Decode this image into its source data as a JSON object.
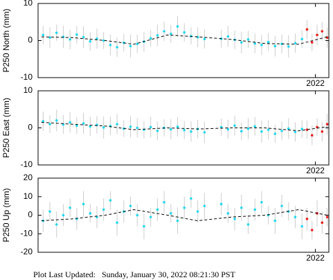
{
  "chart_data": [
    {
      "type": "scatter",
      "ylabel": "P250 North (mm)",
      "xlim": [
        2020.35,
        2022.08
      ],
      "xticks": [
        2022
      ],
      "ylim": [
        -10,
        10
      ],
      "yticks": [
        -10,
        0,
        10
      ],
      "series": [
        {
          "color": "#22d8ee",
          "x": [
            2020.38,
            2020.42,
            2020.46,
            2020.5,
            2020.54,
            2020.58,
            2020.62,
            2020.66,
            2020.7,
            2020.74,
            2020.78,
            2020.82,
            2020.86,
            2020.9,
            2020.94,
            2020.98,
            2021.02,
            2021.06,
            2021.1,
            2021.14,
            2021.18,
            2021.22,
            2021.26,
            2021.3,
            2021.34,
            2021.44,
            2021.48,
            2021.52,
            2021.56,
            2021.6,
            2021.64,
            2021.68,
            2021.72,
            2021.76,
            2021.8,
            2021.84,
            2021.88,
            2021.92
          ],
          "values": [
            1.5,
            0.8,
            2.1,
            1.0,
            0.3,
            1.6,
            0.9,
            -0.2,
            0.5,
            0.0,
            -1.2,
            -1.8,
            -0.6,
            -1.5,
            -0.9,
            -0.3,
            0.6,
            1.4,
            2.5,
            1.8,
            3.8,
            2.2,
            1.2,
            0.9,
            0.4,
            0.5,
            1.1,
            0.2,
            -0.5,
            0.3,
            -0.8,
            -1.2,
            -0.4,
            -1.5,
            -0.9,
            -1.6,
            -0.7,
            0.4
          ],
          "errors": [
            2.5,
            2.8,
            2.2,
            3.0,
            2.6,
            2.4,
            2.9,
            2.5,
            2.7,
            2.3,
            2.8,
            2.6,
            2.4,
            3.1,
            2.5,
            2.7,
            2.2,
            2.9,
            2.6,
            2.4,
            2.8,
            2.5,
            2.3,
            2.7,
            2.6,
            2.4,
            2.8,
            2.5,
            2.9,
            2.3,
            2.6,
            2.7,
            2.4,
            2.8,
            2.5,
            3.0,
            2.6,
            2.4
          ]
        },
        {
          "color": "#e82020",
          "x": [
            2021.95,
            2021.98,
            2022.01,
            2022.04,
            2022.07
          ],
          "values": [
            3.0,
            -0.5,
            1.5,
            2.5,
            0.8
          ],
          "errors": [
            2.6,
            2.4,
            2.8,
            2.5,
            2.7
          ]
        },
        {
          "color": "#000000",
          "dash": true,
          "x": [
            2020.37,
            2020.55,
            2020.75,
            2020.92,
            2021.12,
            2021.3,
            2021.5,
            2021.7,
            2021.9,
            2022.07
          ],
          "values": [
            1,
            0.8,
            0,
            -1,
            1.5,
            1,
            0.3,
            -0.8,
            -1,
            1
          ]
        }
      ]
    },
    {
      "type": "scatter",
      "ylabel": "P250 East (mm)",
      "xlim": [
        2020.35,
        2022.08
      ],
      "xticks": [
        2022
      ],
      "ylim": [
        -10,
        10
      ],
      "yticks": [
        -10,
        0,
        10
      ],
      "series": [
        {
          "color": "#22d8ee",
          "x": [
            2020.38,
            2020.42,
            2020.46,
            2020.5,
            2020.54,
            2020.58,
            2020.62,
            2020.66,
            2020.7,
            2020.74,
            2020.78,
            2020.82,
            2020.86,
            2020.9,
            2020.94,
            2020.98,
            2021.02,
            2021.06,
            2021.1,
            2021.14,
            2021.18,
            2021.22,
            2021.26,
            2021.3,
            2021.34,
            2021.44,
            2021.48,
            2021.52,
            2021.56,
            2021.6,
            2021.64,
            2021.68,
            2021.72,
            2021.76,
            2021.8,
            2021.84,
            2021.88,
            2021.92
          ],
          "values": [
            1.8,
            1.0,
            2.0,
            0.9,
            1.5,
            0.6,
            1.2,
            0.4,
            0.8,
            0.1,
            0.5,
            1.0,
            -0.2,
            0.3,
            0.0,
            -0.5,
            0.2,
            -0.8,
            0.0,
            -0.4,
            0.3,
            -0.6,
            -1.0,
            -0.3,
            -1.2,
            0.2,
            -0.4,
            0.6,
            -0.9,
            -0.2,
            0.4,
            -1.0,
            -0.5,
            -1.6,
            -0.8,
            -0.2,
            -1.1,
            -0.3
          ],
          "errors": [
            2.6,
            2.4,
            2.9,
            2.5,
            2.7,
            2.3,
            2.8,
            2.6,
            2.4,
            3.0,
            2.5,
            2.7,
            2.2,
            2.9,
            2.6,
            2.4,
            2.8,
            2.5,
            2.3,
            2.7,
            2.6,
            2.4,
            2.8,
            2.5,
            2.9,
            2.3,
            2.6,
            2.7,
            2.4,
            2.8,
            2.5,
            3.0,
            2.6,
            2.4,
            2.5,
            2.8,
            2.6,
            2.4
          ]
        },
        {
          "color": "#e82020",
          "x": [
            2021.95,
            2021.98,
            2022.01,
            2022.04,
            2022.07
          ],
          "values": [
            -0.5,
            -2.0,
            0.2,
            -1.0,
            1.0
          ],
          "errors": [
            2.5,
            2.7,
            2.4,
            2.6,
            2.8
          ]
        },
        {
          "color": "#000000",
          "dash": true,
          "x": [
            2020.37,
            2020.55,
            2020.75,
            2020.92,
            2021.12,
            2021.3,
            2021.5,
            2021.7,
            2021.9,
            2022.07
          ],
          "values": [
            1.5,
            1.0,
            0.5,
            -0.5,
            0,
            -0.3,
            0,
            0,
            -0.8,
            0.3
          ]
        }
      ]
    },
    {
      "type": "scatter",
      "ylabel": "P250 Up (mm)",
      "xlim": [
        2020.35,
        2022.08
      ],
      "xticks": [
        2022
      ],
      "ylim": [
        -20,
        20
      ],
      "yticks": [
        -20,
        -10,
        0,
        10,
        20
      ],
      "series": [
        {
          "color": "#22d8ee",
          "x": [
            2020.38,
            2020.42,
            2020.46,
            2020.5,
            2020.54,
            2020.58,
            2020.62,
            2020.66,
            2020.7,
            2020.74,
            2020.78,
            2020.82,
            2020.86,
            2020.9,
            2020.94,
            2020.98,
            2021.02,
            2021.06,
            2021.1,
            2021.14,
            2021.18,
            2021.22,
            2021.26,
            2021.3,
            2021.34,
            2021.44,
            2021.48,
            2021.52,
            2021.56,
            2021.6,
            2021.64,
            2021.68,
            2021.72,
            2021.76,
            2021.8,
            2021.84,
            2021.88,
            2021.92
          ],
          "values": [
            -3,
            2,
            -5,
            0,
            4,
            -2,
            6,
            1,
            -1,
            3,
            8,
            -4,
            2,
            5,
            0,
            -6,
            -1,
            3,
            7,
            1,
            -3,
            4,
            9,
            2,
            5,
            6,
            1,
            -2,
            4,
            -5,
            3,
            7,
            0,
            -3,
            5,
            2,
            -1,
            -6
          ],
          "errors": [
            6,
            5,
            7,
            6,
            5,
            6,
            7,
            5,
            6,
            6,
            5,
            7,
            6,
            5,
            6,
            7,
            5,
            6,
            6,
            5,
            7,
            6,
            5,
            6,
            7,
            6,
            5,
            6,
            7,
            5,
            6,
            6,
            5,
            7,
            6,
            5,
            6,
            7
          ]
        },
        {
          "color": "#e82020",
          "x": [
            2021.95,
            2021.98,
            2022.01,
            2022.04,
            2022.07
          ],
          "values": [
            -2,
            -8,
            1,
            -4,
            -1
          ],
          "errors": [
            6,
            5,
            7,
            6,
            5
          ]
        },
        {
          "color": "#000000",
          "dash": true,
          "x": [
            2020.37,
            2020.55,
            2020.75,
            2020.92,
            2021.12,
            2021.3,
            2021.5,
            2021.7,
            2021.9,
            2022.07
          ],
          "values": [
            -3,
            -2,
            0,
            3,
            0,
            -3,
            -1,
            0,
            3,
            0
          ]
        }
      ]
    }
  ],
  "footer": "Plot Last Updated:   Sunday, January 30, 2022 08:21:30 PST"
}
